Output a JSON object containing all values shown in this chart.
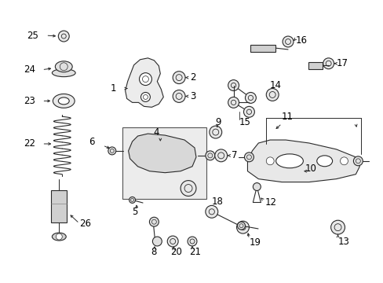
{
  "bg_color": "#ffffff",
  "line_color": "#2a2a2a",
  "label_color": "#000000",
  "fig_width": 4.89,
  "fig_height": 3.6,
  "dpi": 100,
  "label_fontsize": 8.5,
  "lw": 0.8
}
